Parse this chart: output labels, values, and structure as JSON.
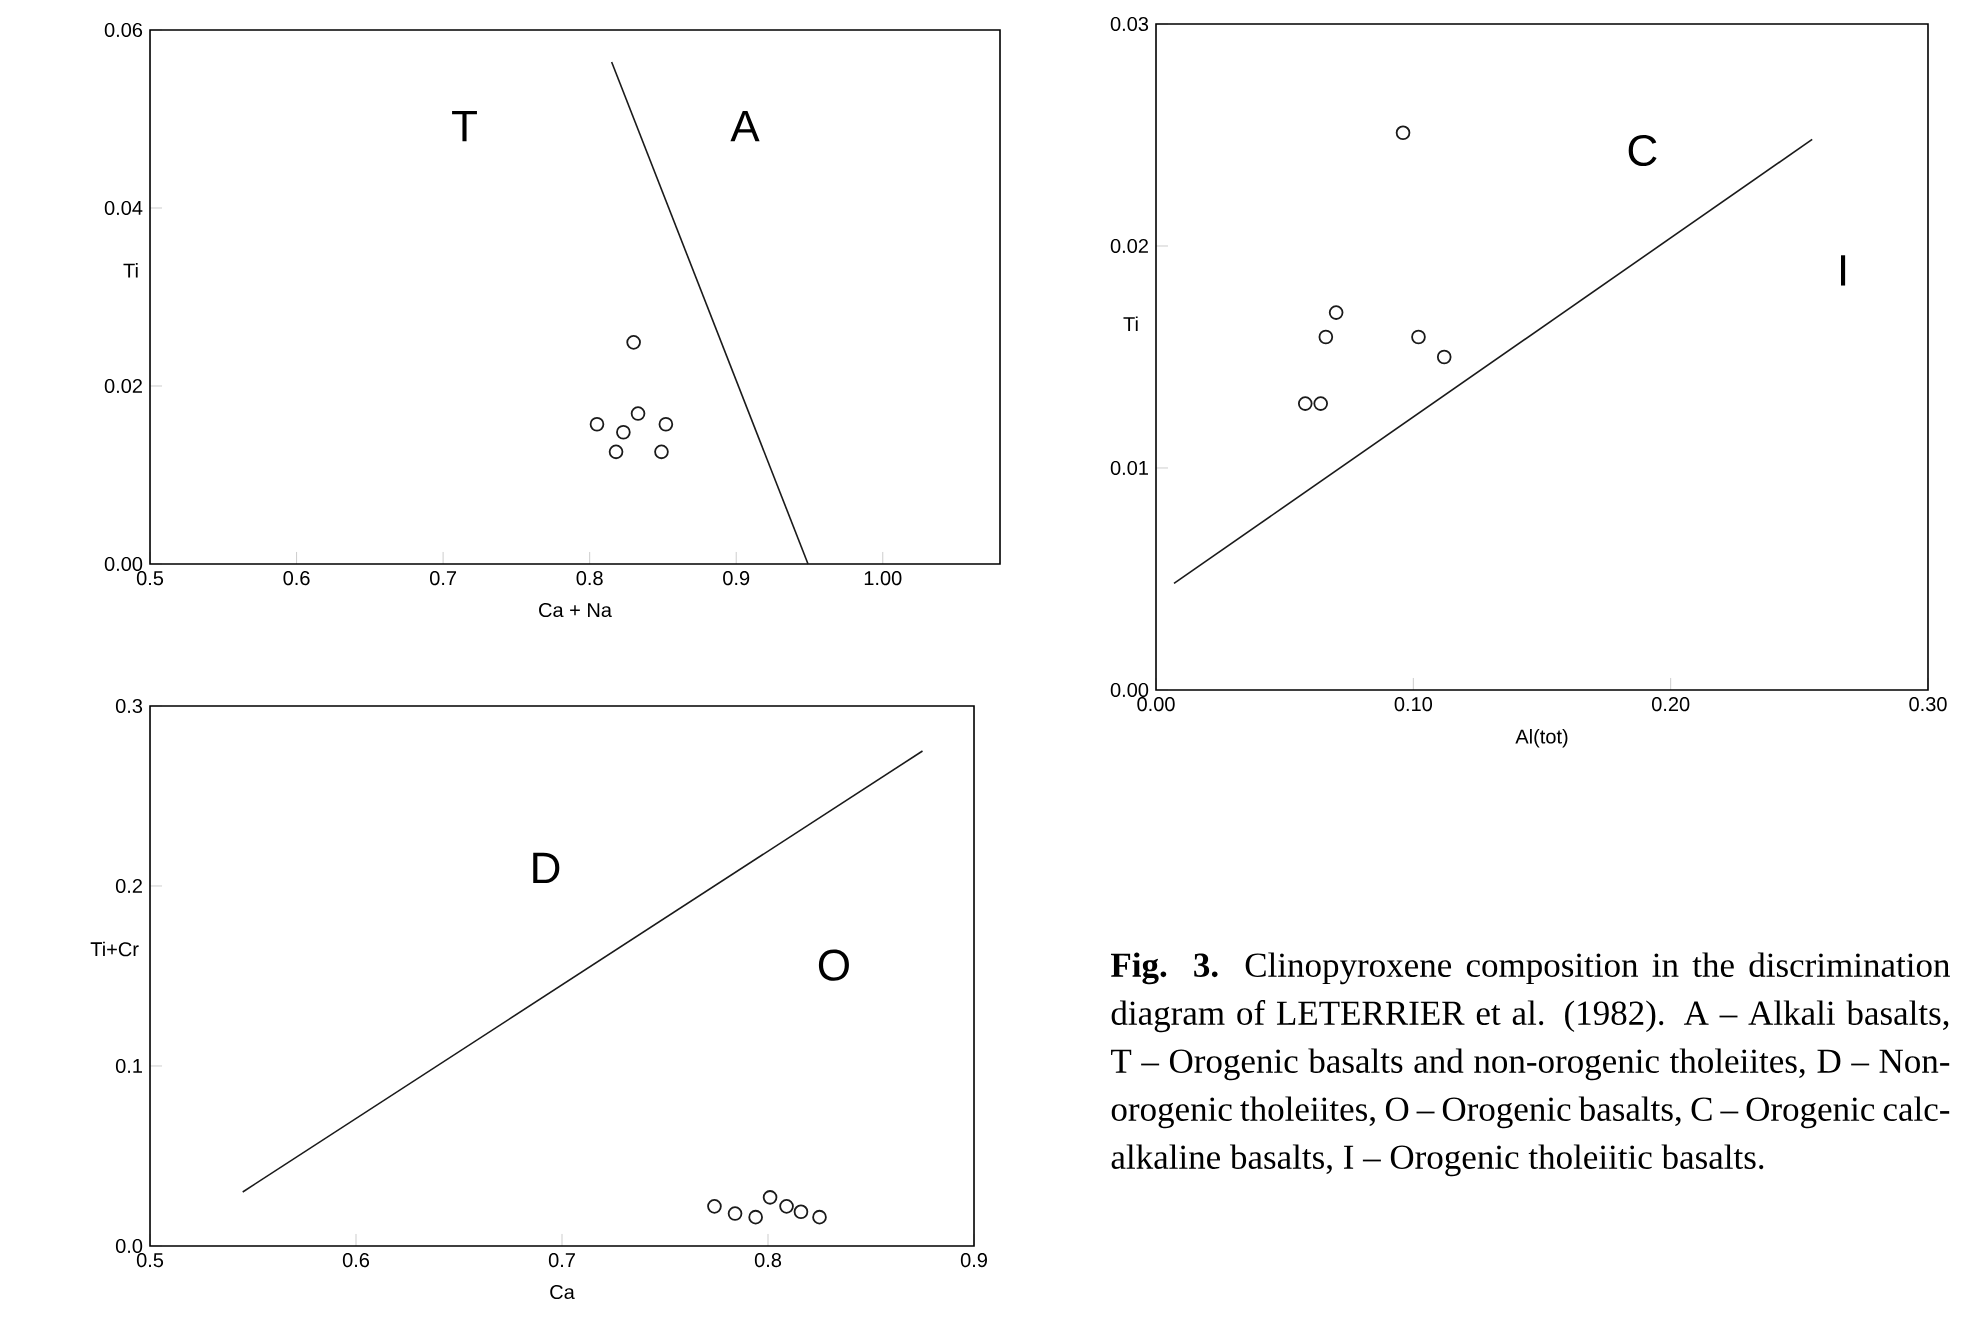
{
  "chart_data": [
    {
      "type": "scatter",
      "xlabel": "Ca + Na",
      "ylabel": "Ti",
      "xlim": [
        0.5,
        1.08
      ],
      "ylim": [
        0,
        0.06
      ],
      "xticks": [
        {
          "value": 0.5,
          "label": "0.5"
        },
        {
          "value": 0.6,
          "label": "0.6"
        },
        {
          "value": 0.7,
          "label": "0.7"
        },
        {
          "value": 0.8,
          "label": "0.8"
        },
        {
          "value": 0.9,
          "label": "0.9"
        },
        {
          "value": 1.0,
          "label": "1.00"
        }
      ],
      "yticks": [
        {
          "value": 0,
          "label": "0.00"
        },
        {
          "value": 0.02,
          "label": "0.02"
        },
        {
          "value": 0.04,
          "label": "0.04"
        },
        {
          "value": 0.06,
          "label": "0.06"
        }
      ],
      "grid": false,
      "series": [
        {
          "marker": "circle",
          "color": "#1a1a1a",
          "x": [
            0.83,
            0.805,
            0.823,
            0.833,
            0.818,
            0.852,
            0.849
          ],
          "values": [
            0.0249,
            0.0157,
            0.0148,
            0.0169,
            0.0126,
            0.0157,
            0.0126
          ]
        },
        {
          "type": "line",
          "marker": "none",
          "line_style": "solid",
          "color": "#1a1a1a",
          "x": [
            0.815,
            0.949
          ],
          "values": [
            0.0564,
            0
          ]
        }
      ],
      "annotations": [
        "T",
        "A"
      ]
    },
    {
      "type": "scatter",
      "xlabel": "Al(tot)",
      "ylabel": "Ti",
      "xlim": [
        0,
        0.3
      ],
      "ylim": [
        0,
        0.03
      ],
      "xticks": [
        {
          "value": 0,
          "label": "0.00"
        },
        {
          "value": 0.1,
          "label": "0.10"
        },
        {
          "value": 0.2,
          "label": "0.20"
        },
        {
          "value": 0.3,
          "label": "0.30"
        }
      ],
      "yticks": [
        {
          "value": 0,
          "label": "0.00"
        },
        {
          "value": 0.01,
          "label": "0.01"
        },
        {
          "value": 0.02,
          "label": "0.02"
        },
        {
          "value": 0.03,
          "label": "0.03"
        }
      ],
      "grid": false,
      "series": [
        {
          "marker": "circle",
          "color": "#1a1a1a",
          "x": [
            0.096,
            0.07,
            0.066,
            0.058,
            0.064,
            0.102,
            0.112
          ],
          "values": [
            0.0251,
            0.017,
            0.0159,
            0.0129,
            0.0129,
            0.0159,
            0.015
          ]
        },
        {
          "type": "line",
          "marker": "none",
          "line_style": "solid",
          "color": "#1a1a1a",
          "x": [
            0.007,
            0.255
          ],
          "values": [
            0.0048,
            0.0248
          ]
        }
      ],
      "annotations": [
        "C",
        "I"
      ]
    },
    {
      "type": "scatter",
      "xlabel": "Ca",
      "ylabel": "Ti+Cr",
      "xlim": [
        0.5,
        0.9
      ],
      "ylim": [
        0,
        0.3
      ],
      "xticks": [
        {
          "value": 0.5,
          "label": "0.5"
        },
        {
          "value": 0.6,
          "label": "0.6"
        },
        {
          "value": 0.7,
          "label": "0.7"
        },
        {
          "value": 0.8,
          "label": "0.8"
        },
        {
          "value": 0.9,
          "label": "0.9"
        }
      ],
      "yticks": [
        {
          "value": 0,
          "label": "0.0"
        },
        {
          "value": 0.1,
          "label": "0.1"
        },
        {
          "value": 0.2,
          "label": "0.2"
        },
        {
          "value": 0.3,
          "label": "0.3"
        }
      ],
      "grid": false,
      "series": [
        {
          "marker": "circle",
          "color": "#1a1a1a",
          "x": [
            0.774,
            0.784,
            0.794,
            0.801,
            0.809,
            0.816,
            0.825
          ],
          "values": [
            0.022,
            0.018,
            0.016,
            0.027,
            0.022,
            0.019,
            0.016
          ]
        },
        {
          "type": "line",
          "marker": "none",
          "line_style": "solid",
          "color": "#1a1a1a",
          "x": [
            0.545,
            0.875
          ],
          "values": [
            0.03,
            0.275
          ]
        }
      ],
      "annotations": [
        "D",
        "O",
        "**Fig. 3.** Clinopyroxene composition in the discrimination diagram of LETERRIER et al. (1982). A – Alkali basalts, T – Orogenic basalts and non-orogenic tholeiites, D – Non-orogenic tholeiites, O – Orogenic basalts, C – Orogenic calc-alkaline basalts, I – Orogenic tholeiitic basalts."
      ]
    }
  ]
}
